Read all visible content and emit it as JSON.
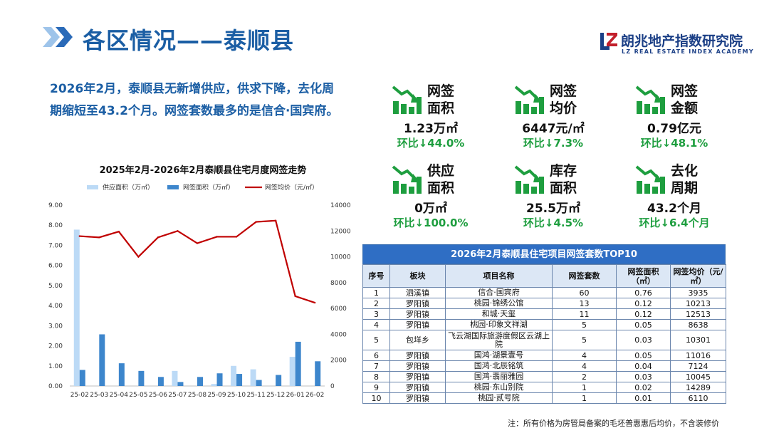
{
  "header": {
    "title": "各区情况——泰顺县",
    "logo_cn": "朗兆地产指数研究院",
    "logo_en": "LZ REAL ESTATE INDEX ACADEMY",
    "accent": "#1b5ea4"
  },
  "summary": {
    "line1": "2026年2月，泰顺县无新增供应，供求下降，去化周",
    "line2": "期缩短至43.2个月。网签套数最多的是信合·国宾府。"
  },
  "kpis": [
    {
      "icon": "chart-down-icon",
      "label1": "网签",
      "label2": "面积",
      "value": "1.23万㎡",
      "change": "环比↓44.0%"
    },
    {
      "icon": "chart-down-icon",
      "label1": "网签",
      "label2": "均价",
      "value": "6447元/㎡",
      "change": "环比↓7.3%"
    },
    {
      "icon": "chart-down-icon",
      "label1": "网签",
      "label2": "金额",
      "value": "0.79亿元",
      "change": "环比↓48.1%"
    },
    {
      "icon": "chart-down-icon",
      "label1": "供应",
      "label2": "面积",
      "value": "0万㎡",
      "change": "环比↓100.0%"
    },
    {
      "icon": "chart-down-icon",
      "label1": "库存",
      "label2": "面积",
      "value": "25.5万㎡",
      "change": "环比↓4.5%"
    },
    {
      "icon": "chart-down-icon",
      "label1": "去化",
      "label2": "周期",
      "value": "43.2个月",
      "change": "环比↓6.4个月"
    }
  ],
  "chart_data": {
    "type": "bar",
    "title": "2025年2月-2026年2月泰顺县住宅月度网签走势",
    "categories": [
      "25-02",
      "25-03",
      "25-04",
      "25-05",
      "25-06",
      "25-07",
      "25-08",
      "25-09",
      "25-10",
      "25-11",
      "25-12",
      "26-01",
      "26-02"
    ],
    "series": [
      {
        "name": "供应面积（万㎡）",
        "kind": "bar",
        "axis": "left",
        "color": "#bcdaf6",
        "values": [
          7.78,
          0,
          0,
          0,
          0,
          0.75,
          0,
          0.1,
          1.0,
          0.83,
          0,
          1.45,
          0
        ]
      },
      {
        "name": "网签面积（万㎡）",
        "kind": "bar",
        "axis": "left",
        "color": "#3d86cc",
        "values": [
          0.8,
          2.57,
          1.13,
          0.75,
          0.45,
          0.2,
          0.45,
          0.63,
          0.6,
          0.3,
          0.55,
          2.2,
          1.23
        ]
      },
      {
        "name": "网签均价（元/㎡）",
        "kind": "line",
        "axis": "right",
        "color": "#c00000",
        "values": [
          11600,
          11500,
          11950,
          10000,
          11500,
          12000,
          11050,
          11550,
          11550,
          12700,
          12800,
          6950,
          6447
        ]
      }
    ],
    "y_left": {
      "min": 0,
      "max": 9,
      "step": 1,
      "ticks": [
        "0.00",
        "1.00",
        "2.00",
        "3.00",
        "4.00",
        "5.00",
        "6.00",
        "7.00",
        "8.00",
        "9.00"
      ]
    },
    "y_right": {
      "min": 0,
      "max": 14000,
      "step": 2000,
      "ticks": [
        "0",
        "2000",
        "4000",
        "6000",
        "8000",
        "10000",
        "12000",
        "14000"
      ]
    },
    "legend_position": "top",
    "grid": false
  },
  "table": {
    "title": "2026年2月泰顺县住宅项目网签套数TOP10",
    "headers": [
      "序号",
      "板块",
      "项目名称",
      "网签套数",
      "网签面积（㎡）",
      "网签均价（元/㎡）"
    ],
    "rows": [
      [
        "1",
        "泗溪镇",
        "信合·国宾府",
        "60",
        "0.76",
        "3935"
      ],
      [
        "2",
        "罗阳镇",
        "桃园·锦绣公馆",
        "13",
        "0.12",
        "10213"
      ],
      [
        "3",
        "罗阳镇",
        "和城·天玺",
        "11",
        "0.12",
        "12513"
      ],
      [
        "4",
        "罗阳镇",
        "桃园·印象文祥湖",
        "5",
        "0.05",
        "8638"
      ],
      [
        "5",
        "包垟乡",
        "飞云湖国际旅游度假区云湖上院",
        "5",
        "0.03",
        "10301"
      ],
      [
        "6",
        "罗阳镇",
        "国鸿·湖景壹号",
        "4",
        "0.05",
        "11016"
      ],
      [
        "7",
        "罗阳镇",
        "国鸿·北辰铭筑",
        "4",
        "0.04",
        "7124"
      ],
      [
        "8",
        "罗阳镇",
        "国鸿·翡丽雅园",
        "2",
        "0.03",
        "10045"
      ],
      [
        "9",
        "罗阳镇",
        "桃园·东山别院",
        "1",
        "0.02",
        "14289"
      ],
      [
        "10",
        "罗阳镇",
        "桃园·贰号院",
        "1",
        "0.01",
        "6110"
      ]
    ]
  },
  "note": "注：所有价格为房管局备案的毛坯普惠惠后均价，不含装修价"
}
